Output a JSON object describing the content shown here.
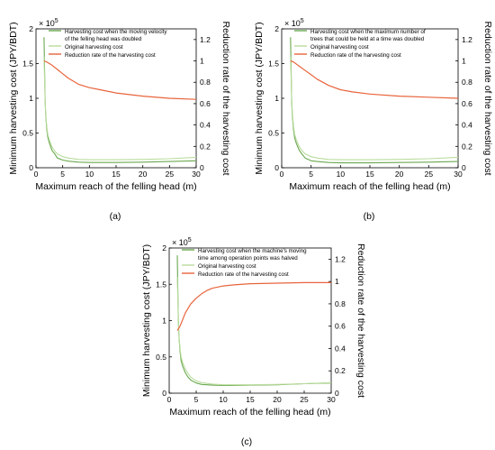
{
  "figure": {
    "panels": [
      "(a)",
      "(b)",
      "(c)"
    ]
  },
  "colors": {
    "modified_cost": "#6aa84f",
    "original_cost": "#b9dc9c",
    "reduction_rate": "#e8643c",
    "axis": "#000000"
  },
  "chart_data": [
    {
      "panel": "(a)",
      "type": "line",
      "xlabel": "Maximum reach of the felling head (m)",
      "ylabel_left": "Minimum harvesting cost (JPY/BDT)",
      "ylabel_right": "Reduction rate of the harvesting cost",
      "left_axis_multiplier": "× 10",
      "left_axis_exponent": "5",
      "xlim": [
        0,
        30
      ],
      "ylim_left": [
        0,
        2
      ],
      "ylim_right": [
        0,
        1.3
      ],
      "x_ticks": [
        "0",
        "5",
        "10",
        "15",
        "20",
        "25",
        "30"
      ],
      "y_left_ticks": [
        "0",
        "0.5",
        "1",
        "1.5",
        "2"
      ],
      "y_right_ticks": [
        "0",
        "0.2",
        "0.4",
        "0.6",
        "0.8",
        "1",
        "1.2"
      ],
      "legend_placement": "top-right",
      "grid": false,
      "series": [
        {
          "name": "Harvesting cost when the moving velocity of the felling head was doubled",
          "axis": "left",
          "color": "#6aa84f",
          "x": [
            1.5,
            1.6,
            1.7,
            1.8,
            2,
            2.2,
            2.5,
            3,
            3.5,
            4,
            5,
            6,
            8,
            10,
            15,
            20,
            25,
            30
          ],
          "y": [
            1.88,
            1.45,
            0.98,
            0.78,
            0.56,
            0.44,
            0.36,
            0.25,
            0.2,
            0.14,
            0.11,
            0.095,
            0.08,
            0.075,
            0.075,
            0.08,
            0.09,
            0.1
          ]
        },
        {
          "name": "Original harvesting cost",
          "axis": "left",
          "color": "#b9dc9c",
          "x": [
            1.5,
            1.6,
            1.7,
            1.8,
            2,
            2.2,
            2.5,
            3,
            3.5,
            4,
            5,
            6,
            8,
            10,
            15,
            20,
            25,
            30
          ],
          "y": [
            1.6,
            1.3,
            1.0,
            0.8,
            0.6,
            0.48,
            0.4,
            0.3,
            0.24,
            0.2,
            0.16,
            0.14,
            0.12,
            0.115,
            0.115,
            0.12,
            0.13,
            0.15
          ]
        },
        {
          "name": "Reduction rate of the harvesting cost",
          "axis": "right",
          "color": "#e8643c",
          "x": [
            1.5,
            2,
            3,
            4,
            5,
            6,
            7,
            8,
            10,
            12,
            15,
            20,
            25,
            30
          ],
          "y": [
            1.0,
            0.99,
            0.96,
            0.92,
            0.88,
            0.84,
            0.81,
            0.78,
            0.75,
            0.73,
            0.7,
            0.67,
            0.65,
            0.64
          ]
        }
      ]
    },
    {
      "panel": "(b)",
      "type": "line",
      "xlabel": "Maximum reach of the felling head (m)",
      "ylabel_left": "Minimum harvesting cost (JPY/BDT)",
      "ylabel_right": "Reduction rate of the harvesting cost",
      "left_axis_multiplier": "× 10",
      "left_axis_exponent": "5",
      "xlim": [
        0,
        30
      ],
      "ylim_left": [
        0,
        2
      ],
      "ylim_right": [
        0,
        1.3
      ],
      "x_ticks": [
        "0",
        "5",
        "10",
        "15",
        "20",
        "25",
        "30"
      ],
      "y_left_ticks": [
        "0",
        "0.5",
        "1",
        "1.5",
        "2"
      ],
      "y_right_ticks": [
        "0",
        "0.2",
        "0.4",
        "0.6",
        "0.8",
        "1",
        "1.2"
      ],
      "legend_placement": "top-right",
      "grid": false,
      "series": [
        {
          "name": "Harvesting cost when the maximum number of trees that could be held at a time was doubled",
          "axis": "left",
          "color": "#6aa84f",
          "x": [
            1.5,
            1.6,
            1.7,
            1.8,
            2,
            2.2,
            2.5,
            3,
            3.5,
            4,
            5,
            6,
            8,
            10,
            15,
            20,
            25,
            30
          ],
          "y": [
            1.88,
            1.4,
            0.95,
            0.76,
            0.55,
            0.43,
            0.35,
            0.25,
            0.19,
            0.14,
            0.1,
            0.09,
            0.075,
            0.07,
            0.07,
            0.075,
            0.08,
            0.09
          ]
        },
        {
          "name": "Original harvesting cost",
          "axis": "left",
          "color": "#b9dc9c",
          "x": [
            1.5,
            1.6,
            1.7,
            1.8,
            2,
            2.2,
            2.5,
            3,
            3.5,
            4,
            5,
            6,
            8,
            10,
            15,
            20,
            25,
            30
          ],
          "y": [
            1.6,
            1.3,
            1.0,
            0.8,
            0.6,
            0.48,
            0.4,
            0.3,
            0.24,
            0.2,
            0.16,
            0.14,
            0.12,
            0.115,
            0.115,
            0.12,
            0.13,
            0.15
          ]
        },
        {
          "name": "Reduction rate of the harvesting cost",
          "axis": "right",
          "color": "#e8643c",
          "x": [
            1.5,
            2,
            3,
            4,
            5,
            6,
            7,
            8,
            10,
            12,
            15,
            20,
            25,
            30
          ],
          "y": [
            1.0,
            0.99,
            0.95,
            0.91,
            0.87,
            0.83,
            0.8,
            0.77,
            0.73,
            0.71,
            0.69,
            0.67,
            0.66,
            0.65
          ]
        }
      ]
    },
    {
      "panel": "(c)",
      "type": "line",
      "xlabel": "Maximum reach of the felling head (m)",
      "ylabel_left": "Minimum harvesting cost (JPY/BDT)",
      "ylabel_right": "Reduction rate of the harvesting cost",
      "left_axis_multiplier": "× 10",
      "left_axis_exponent": "5",
      "xlim": [
        0,
        30
      ],
      "ylim_left": [
        0,
        2
      ],
      "ylim_right": [
        0,
        1.3
      ],
      "x_ticks": [
        "0",
        "5",
        "10",
        "15",
        "20",
        "25",
        "30"
      ],
      "y_left_ticks": [
        "0",
        "0.5",
        "1",
        "1.5",
        "2"
      ],
      "y_right_ticks": [
        "0",
        "0.2",
        "0.4",
        "0.6",
        "0.8",
        "1",
        "1.2"
      ],
      "legend_placement": "top-right",
      "grid": false,
      "series": [
        {
          "name": "Harvesting cost when the machine's moving time among operation points was halved",
          "axis": "left",
          "color": "#6aa84f",
          "x": [
            1.5,
            1.6,
            1.7,
            1.8,
            2,
            2.2,
            2.5,
            3,
            3.5,
            4,
            5,
            6,
            8,
            10,
            15,
            20,
            25,
            30
          ],
          "y": [
            1.9,
            1.4,
            1.0,
            0.8,
            0.58,
            0.45,
            0.37,
            0.28,
            0.22,
            0.18,
            0.14,
            0.12,
            0.11,
            0.105,
            0.11,
            0.115,
            0.13,
            0.14
          ]
        },
        {
          "name": "Original harvesting cost",
          "axis": "left",
          "color": "#b9dc9c",
          "x": [
            1.5,
            1.6,
            1.7,
            1.8,
            2,
            2.2,
            2.5,
            3,
            3.5,
            4,
            5,
            6,
            8,
            10,
            15,
            20,
            25,
            30
          ],
          "y": [
            1.6,
            1.3,
            1.0,
            0.8,
            0.62,
            0.5,
            0.42,
            0.33,
            0.27,
            0.22,
            0.17,
            0.145,
            0.125,
            0.115,
            0.115,
            0.12,
            0.13,
            0.145
          ]
        },
        {
          "name": "Reduction rate of the harvesting cost",
          "axis": "right",
          "color": "#e8643c",
          "x": [
            1.5,
            2,
            2.5,
            3,
            4,
            5,
            6,
            7,
            8,
            10,
            12,
            15,
            20,
            25,
            30
          ],
          "y": [
            0.56,
            0.6,
            0.66,
            0.72,
            0.8,
            0.85,
            0.89,
            0.92,
            0.94,
            0.96,
            0.97,
            0.98,
            0.985,
            0.99,
            0.99
          ]
        }
      ]
    }
  ]
}
